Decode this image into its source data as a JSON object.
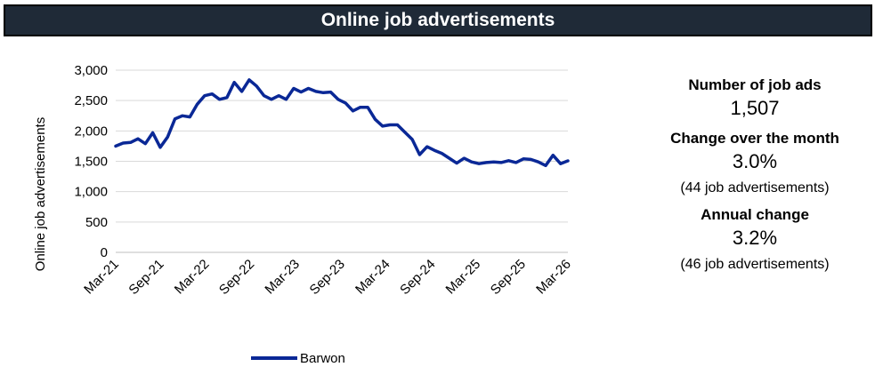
{
  "title": "Online job advertisements",
  "stats": {
    "count_label": "Number of job ads",
    "count_value": "1,507",
    "month_label": "Change over the month",
    "month_value": "3.0%",
    "month_detail": "(44 job advertisements)",
    "annual_label": "Annual change",
    "annual_value": "3.2%",
    "annual_detail": "(46 job advertisements)"
  },
  "colors": {
    "series": "#0a2896",
    "banner": "#1f2a37",
    "grid": "#d9d9d9"
  },
  "chart_data": {
    "type": "line",
    "title": "",
    "xlabel": "",
    "ylabel": "Online job advertisements",
    "ylim": [
      0,
      3000
    ],
    "yticks": [
      0,
      500,
      1000,
      1500,
      2000,
      2500,
      3000
    ],
    "ytick_labels": [
      "0",
      "500",
      "1,000",
      "1,500",
      "2,000",
      "2,500",
      "3,000"
    ],
    "xtick_labels": [
      "Mar-21",
      "Sep-21",
      "Mar-22",
      "Sep-22",
      "Mar-23",
      "Sep-23",
      "Mar-24",
      "Sep-24",
      "Mar-25",
      "Sep-25",
      "Mar-26"
    ],
    "grid": true,
    "legend": "bottom",
    "series": [
      {
        "name": "Barwon",
        "values": [
          1750,
          1800,
          1810,
          1870,
          1790,
          1970,
          1730,
          1900,
          2200,
          2250,
          2230,
          2440,
          2580,
          2610,
          2520,
          2550,
          2800,
          2650,
          2840,
          2740,
          2580,
          2520,
          2580,
          2520,
          2700,
          2640,
          2700,
          2650,
          2630,
          2640,
          2520,
          2460,
          2330,
          2390,
          2390,
          2190,
          2080,
          2100,
          2100,
          1980,
          1860,
          1610,
          1740,
          1680,
          1630,
          1550,
          1470,
          1550,
          1490,
          1460,
          1480,
          1490,
          1480,
          1510,
          1480,
          1540,
          1530,
          1490,
          1430,
          1600,
          1460,
          1507
        ]
      }
    ]
  }
}
